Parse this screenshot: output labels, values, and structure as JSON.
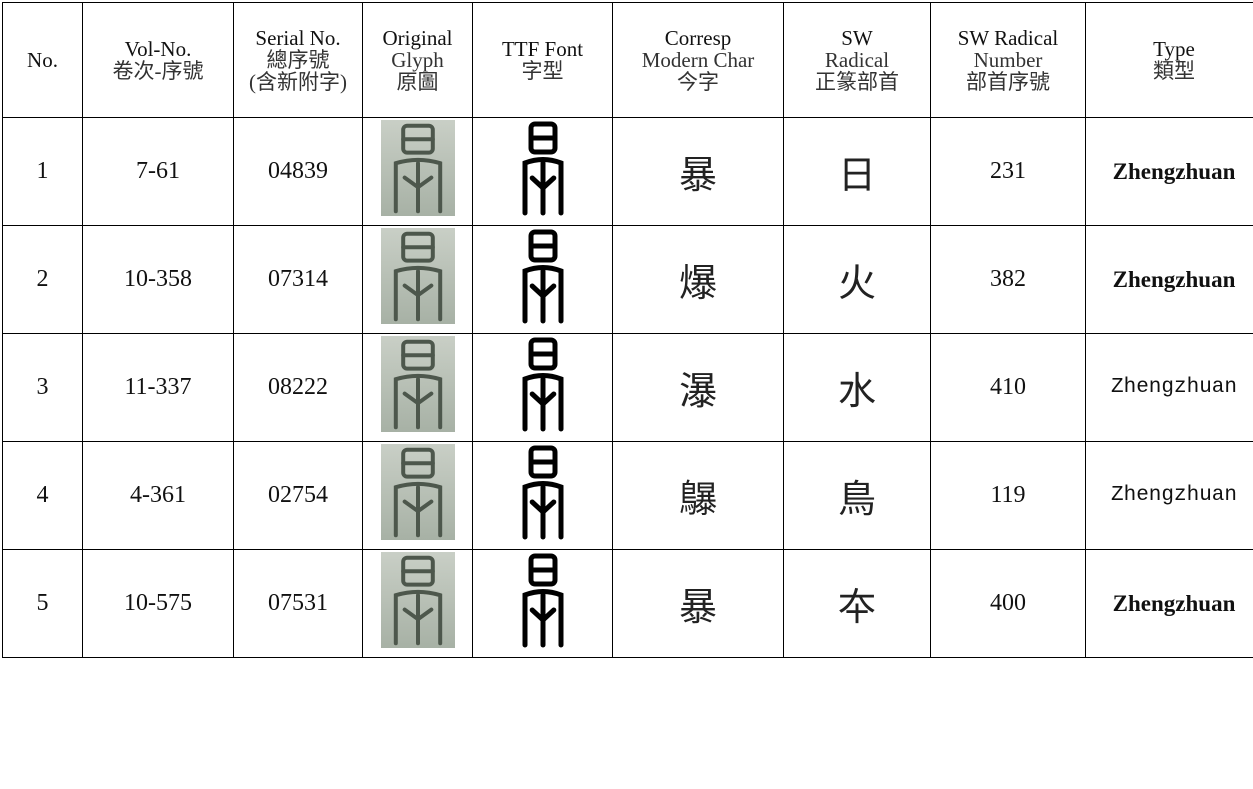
{
  "table": {
    "headers": [
      [
        "No."
      ],
      [
        "Vol-No.",
        "卷次-序號"
      ],
      [
        "Serial No.",
        "總序號",
        "(含新附字)"
      ],
      [
        "Original",
        "Glyph",
        "原圖"
      ],
      [
        "TTF Font",
        "字型"
      ],
      [
        "Corresp",
        "Modern Char",
        "今字"
      ],
      [
        "SW",
        "Radical",
        "正篆部首"
      ],
      [
        "SW Radical",
        "Number",
        "部首序號"
      ],
      [
        "Type",
        "類型"
      ]
    ],
    "rows": [
      [
        "1",
        "7-61",
        "04839",
        "暴",
        "日",
        "231",
        "Zhengzhuan"
      ],
      [
        "2",
        "10-358",
        "07314",
        "爆",
        "火",
        "382",
        "Zhengzhuan"
      ],
      [
        "3",
        "11-337",
        "08222",
        "瀑",
        "水",
        "410",
        "Zhengzhuan"
      ],
      [
        "4",
        "4-361",
        "02754",
        "鸔",
        "鳥",
        "119",
        "Zhengzhuan"
      ],
      [
        "5",
        "10-575",
        "07531",
        "暴",
        "夲",
        "400",
        "Zhengzhuan"
      ]
    ]
  }
}
